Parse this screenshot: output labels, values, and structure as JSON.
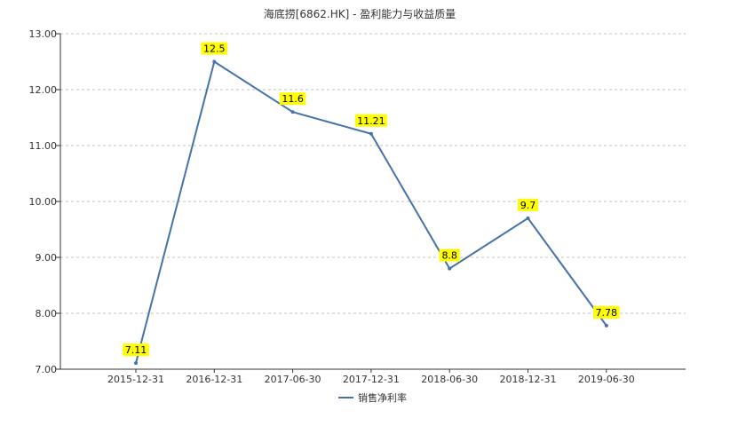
{
  "chart_data": {
    "type": "line",
    "title": "海底捞[6862.HK] - 盈利能力与收益质量",
    "categories": [
      "2015-12-31",
      "2016-12-31",
      "2017-06-30",
      "2017-12-31",
      "2018-06-30",
      "2018-12-31",
      "2019-06-30"
    ],
    "series": [
      {
        "name": "销售净利率",
        "values": [
          7.11,
          12.5,
          11.6,
          11.21,
          8.8,
          9.7,
          7.78
        ],
        "labels": [
          "7.11",
          "12.5",
          "11.6",
          "11.21",
          "8.8",
          "9.7",
          "7.78"
        ],
        "color": "#4572a7"
      }
    ],
    "y_ticks": [
      "7.00",
      "8.00",
      "9.00",
      "10.00",
      "11.00",
      "12.00",
      "13.00"
    ],
    "ylim": [
      7,
      13
    ],
    "grid": true,
    "legend_position": "bottom-center",
    "label_background": "#ffff00"
  }
}
